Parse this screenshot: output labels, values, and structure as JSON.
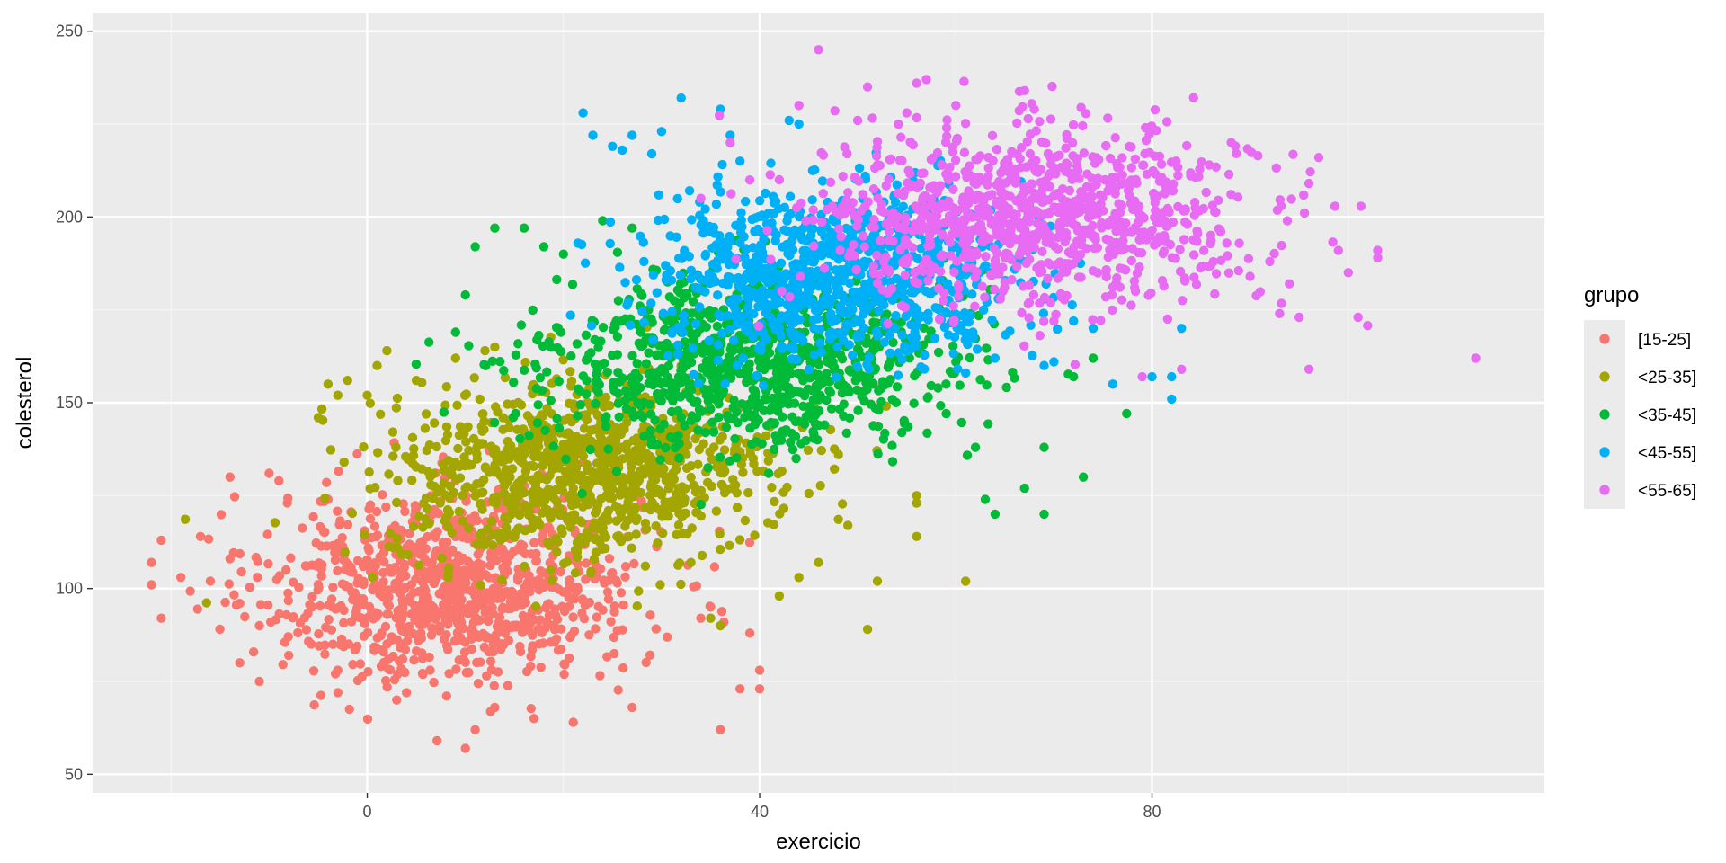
{
  "chart_data": {
    "type": "scatter",
    "xlabel": "exercicio",
    "ylabel": "colesterol",
    "xlim": [
      -28,
      120
    ],
    "ylim": [
      45,
      255
    ],
    "x_ticks": [
      0,
      40,
      80
    ],
    "y_ticks": [
      50,
      100,
      150,
      200,
      250
    ],
    "x_minor_ticks": [
      -20,
      20,
      60,
      100
    ],
    "y_minor_ticks": [
      75,
      125,
      175,
      225
    ],
    "grid": true,
    "legend": {
      "title": "grupo",
      "position": "right",
      "entries": [
        "[15-25]",
        "<25-35]",
        "<35-45]",
        "<45-55]",
        "<55-65]"
      ]
    },
    "series": [
      {
        "name": "[15-25]",
        "color": "#F8766D",
        "center": [
          9,
          101
        ],
        "spread": [
          9.5,
          13
        ],
        "points": [
          [
            -22,
            107
          ],
          [
            -22,
            101
          ],
          [
            -21,
            92
          ],
          [
            -21,
            113
          ],
          [
            -19,
            103
          ],
          [
            -17,
            114
          ],
          [
            -16,
            102
          ],
          [
            -14,
            108
          ],
          [
            -13,
            96
          ],
          [
            -14,
            130
          ],
          [
            -13,
            80
          ],
          [
            -11,
            90
          ],
          [
            -11,
            75
          ],
          [
            -10,
            131
          ],
          [
            -9,
            129
          ],
          [
            -8,
            82
          ],
          [
            -4,
            124
          ],
          [
            -3,
            78
          ],
          [
            -3,
            72
          ],
          [
            3,
            70
          ],
          [
            4,
            72
          ],
          [
            10,
            57
          ],
          [
            11,
            62
          ],
          [
            13,
            68
          ],
          [
            17,
            65
          ],
          [
            21,
            64
          ],
          [
            27,
            68
          ],
          [
            34,
            92
          ],
          [
            35,
            95
          ],
          [
            36,
            62
          ],
          [
            38,
            73
          ],
          [
            39,
            88
          ],
          [
            40,
            73
          ],
          [
            40,
            78
          ]
        ]
      },
      {
        "name": "<25-35]",
        "color": "#A3A500",
        "center": [
          22,
          131
        ],
        "spread": [
          10,
          12
        ],
        "points": [
          [
            -5,
            146
          ],
          [
            -4,
            155
          ],
          [
            -3,
            152
          ],
          [
            -2,
            156
          ],
          [
            0,
            152
          ],
          [
            1,
            160
          ],
          [
            2,
            164
          ],
          [
            5,
            156
          ],
          [
            6,
            147
          ],
          [
            9,
            162
          ],
          [
            12,
            164
          ],
          [
            13,
            165
          ],
          [
            33,
            107
          ],
          [
            35,
            92
          ],
          [
            36,
            90
          ],
          [
            42,
            98
          ],
          [
            44,
            103
          ],
          [
            46,
            107
          ],
          [
            49,
            117
          ],
          [
            51,
            89
          ],
          [
            52,
            102
          ],
          [
            56,
            123
          ],
          [
            56,
            125
          ],
          [
            56,
            114
          ],
          [
            61,
            102
          ]
        ]
      },
      {
        "name": "<35-45]",
        "color": "#00BA38",
        "center": [
          39,
          161
        ],
        "spread": [
          10.5,
          12
        ],
        "points": [
          [
            9,
            169
          ],
          [
            10,
            179
          ],
          [
            11,
            192
          ],
          [
            13,
            197
          ],
          [
            16,
            197
          ],
          [
            18,
            192
          ],
          [
            20,
            190
          ],
          [
            24,
            199
          ],
          [
            27,
            197
          ],
          [
            59,
            155
          ],
          [
            60,
            161
          ],
          [
            62,
            138
          ],
          [
            63,
            124
          ],
          [
            64,
            120
          ],
          [
            67,
            127
          ],
          [
            69,
            138
          ],
          [
            69,
            120
          ],
          [
            72,
            157
          ],
          [
            73,
            130
          ],
          [
            74,
            162
          ]
        ]
      },
      {
        "name": "<45-55]",
        "color": "#00B0F6",
        "center": [
          48,
          185
        ],
        "spread": [
          9.5,
          11
        ],
        "points": [
          [
            22,
            228
          ],
          [
            23,
            222
          ],
          [
            25,
            219
          ],
          [
            26,
            218
          ],
          [
            27,
            222
          ],
          [
            29,
            217
          ],
          [
            30,
            223
          ],
          [
            32,
            232
          ],
          [
            36,
            229
          ],
          [
            37,
            222
          ],
          [
            38,
            215
          ],
          [
            43,
            226
          ],
          [
            44,
            225
          ],
          [
            61,
            158
          ],
          [
            64,
            162
          ],
          [
            69,
            160
          ],
          [
            70,
            161
          ],
          [
            72,
            172
          ],
          [
            74,
            170
          ],
          [
            76,
            155
          ],
          [
            80,
            157
          ],
          [
            82,
            151
          ],
          [
            82,
            157
          ],
          [
            83,
            170
          ]
        ]
      },
      {
        "name": "<55-65]",
        "color": "#E76BF3",
        "center": [
          68,
          200
        ],
        "spread": [
          11,
          12
        ],
        "points": [
          [
            34,
            205
          ],
          [
            37,
            220
          ],
          [
            42,
            210
          ],
          [
            44,
            230
          ],
          [
            46,
            245
          ],
          [
            50,
            226
          ],
          [
            51,
            235
          ],
          [
            55,
            228
          ],
          [
            56,
            236
          ],
          [
            57,
            237
          ],
          [
            60,
            230
          ],
          [
            67,
            234
          ],
          [
            68,
            229
          ],
          [
            70,
            172
          ],
          [
            79,
            157
          ],
          [
            83,
            159
          ],
          [
            87,
            196
          ],
          [
            90,
            184
          ],
          [
            92,
            188
          ],
          [
            93,
            174
          ],
          [
            94,
            182
          ],
          [
            95,
            173
          ],
          [
            96,
            209
          ],
          [
            96,
            159
          ],
          [
            97,
            216
          ],
          [
            99,
            191
          ],
          [
            100,
            185
          ],
          [
            101,
            173
          ],
          [
            103,
            191
          ],
          [
            103,
            189
          ],
          [
            113,
            162
          ]
        ]
      }
    ]
  }
}
